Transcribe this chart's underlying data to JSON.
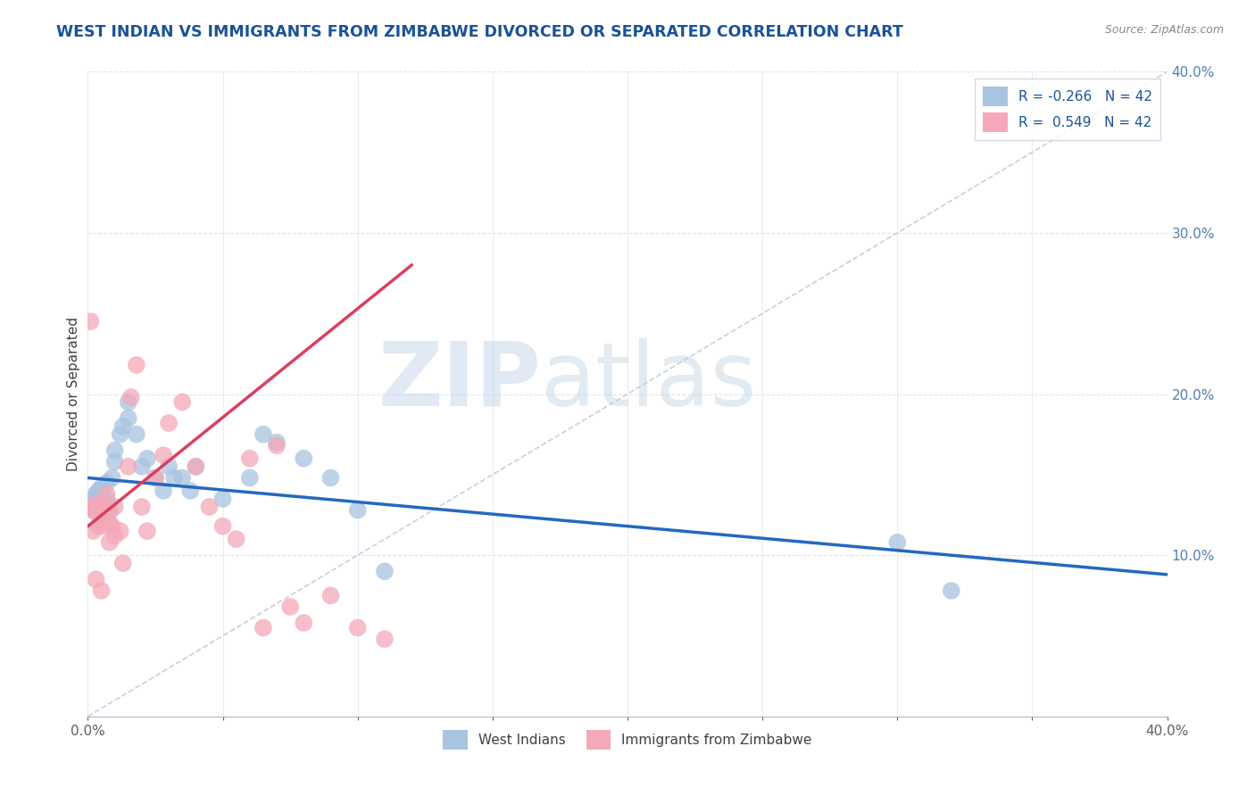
{
  "title": "WEST INDIAN VS IMMIGRANTS FROM ZIMBABWE DIVORCED OR SEPARATED CORRELATION CHART",
  "source": "Source: ZipAtlas.com",
  "ylabel": "Divorced or Separated",
  "xlim": [
    0.0,
    0.4
  ],
  "ylim": [
    0.0,
    0.4
  ],
  "xtick_labels": [
    "0.0%",
    "",
    "",
    "",
    "",
    "",
    "",
    "",
    "40.0%"
  ],
  "xtick_vals": [
    0.0,
    0.05,
    0.1,
    0.15,
    0.2,
    0.25,
    0.3,
    0.35,
    0.4
  ],
  "ytick_labels": [
    "10.0%",
    "20.0%",
    "30.0%",
    "40.0%"
  ],
  "ytick_vals": [
    0.1,
    0.2,
    0.3,
    0.4
  ],
  "legend_blue_label": "R = -0.266   N = 42",
  "legend_pink_label": "R =  0.549   N = 42",
  "blue_color": "#a8c4e0",
  "pink_color": "#f4a8b8",
  "blue_line_color": "#2468c0",
  "pink_line_color": "#d84060",
  "ref_line_color": "#c8d0dc",
  "watermark_zip": "ZIP",
  "watermark_atlas": "atlas",
  "background_color": "#ffffff",
  "grid_color": "#dce4f0",
  "title_color": "#1a5296",
  "axis_label_color": "#404040",
  "right_tick_color": "#5080b0",
  "source_color": "#888888",
  "blue_trend_x": [
    0.0,
    0.4
  ],
  "blue_trend_y": [
    0.148,
    0.088
  ],
  "pink_trend_x": [
    0.0,
    0.12
  ],
  "pink_trend_y": [
    0.118,
    0.28
  ],
  "west_indians_x": [
    0.001,
    0.002,
    0.002,
    0.003,
    0.003,
    0.004,
    0.004,
    0.005,
    0.005,
    0.006,
    0.006,
    0.007,
    0.007,
    0.008,
    0.008,
    0.009,
    0.01,
    0.01,
    0.012,
    0.013,
    0.015,
    0.015,
    0.018,
    0.02,
    0.022,
    0.025,
    0.028,
    0.03,
    0.032,
    0.035,
    0.038,
    0.04,
    0.05,
    0.06,
    0.065,
    0.07,
    0.08,
    0.09,
    0.1,
    0.11,
    0.3,
    0.32
  ],
  "west_indians_y": [
    0.13,
    0.128,
    0.135,
    0.132,
    0.138,
    0.125,
    0.14,
    0.128,
    0.142,
    0.133,
    0.13,
    0.145,
    0.135,
    0.127,
    0.13,
    0.148,
    0.165,
    0.158,
    0.175,
    0.18,
    0.185,
    0.195,
    0.175,
    0.155,
    0.16,
    0.148,
    0.14,
    0.155,
    0.148,
    0.148,
    0.14,
    0.155,
    0.135,
    0.148,
    0.175,
    0.17,
    0.16,
    0.148,
    0.128,
    0.09,
    0.108,
    0.078
  ],
  "zimbabwe_x": [
    0.001,
    0.001,
    0.002,
    0.002,
    0.003,
    0.003,
    0.004,
    0.004,
    0.005,
    0.005,
    0.006,
    0.006,
    0.007,
    0.007,
    0.008,
    0.008,
    0.009,
    0.01,
    0.01,
    0.012,
    0.013,
    0.015,
    0.016,
    0.018,
    0.02,
    0.022,
    0.025,
    0.028,
    0.03,
    0.035,
    0.04,
    0.045,
    0.05,
    0.055,
    0.06,
    0.065,
    0.07,
    0.075,
    0.08,
    0.09,
    0.1,
    0.11
  ],
  "zimbabwe_y": [
    0.245,
    0.13,
    0.115,
    0.128,
    0.085,
    0.13,
    0.118,
    0.132,
    0.125,
    0.078,
    0.13,
    0.118,
    0.128,
    0.138,
    0.12,
    0.108,
    0.118,
    0.13,
    0.112,
    0.115,
    0.095,
    0.155,
    0.198,
    0.218,
    0.13,
    0.115,
    0.148,
    0.162,
    0.182,
    0.195,
    0.155,
    0.13,
    0.118,
    0.11,
    0.16,
    0.055,
    0.168,
    0.068,
    0.058,
    0.075,
    0.055,
    0.048
  ]
}
